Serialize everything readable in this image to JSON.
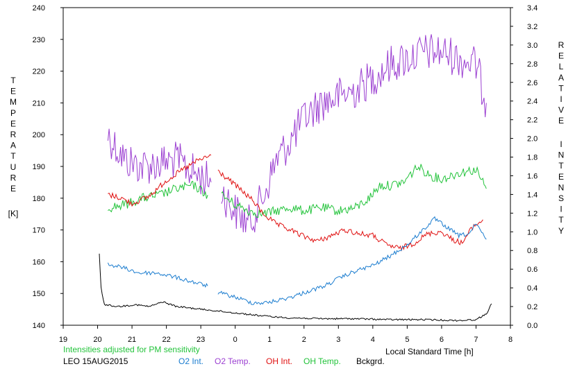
{
  "chart_data": {
    "type": "line",
    "left_axis": {
      "label_letters": [
        "T",
        "E",
        "M",
        "P",
        "E",
        "R",
        "A",
        "T",
        "U",
        "R",
        "E"
      ],
      "unit": "[K]",
      "ticks": [
        "240",
        "230",
        "220",
        "210",
        "200",
        "190",
        "180",
        "170",
        "160",
        "150",
        "140"
      ],
      "range": [
        140,
        240
      ]
    },
    "right_axis": {
      "label_word1": [
        "R",
        "E",
        "L",
        "A",
        "T",
        "I",
        "V",
        "E"
      ],
      "label_word2": [
        "I",
        "N",
        "T",
        "E",
        "N",
        "S",
        "I",
        "T",
        "Y"
      ],
      "ticks": [
        "3.4",
        "3.2",
        "3.0",
        "2.8",
        "2.6",
        "2.4",
        "2.2",
        "2.0",
        "1.8",
        "1.6",
        "1.4",
        "1.2",
        "1.0",
        "0.8",
        "0.6",
        "0.4",
        "0.2",
        "0.0"
      ],
      "range": [
        0.0,
        3.4
      ]
    },
    "x_axis": {
      "label": "Local Standard Time [h]",
      "ticks": [
        "19",
        "20",
        "21",
        "22",
        "23",
        "0",
        "1",
        "2",
        "3",
        "4",
        "5",
        "6",
        "7",
        "8"
      ],
      "range": [
        19,
        32
      ]
    },
    "note": "Intensities adjusted for PM sensitivity",
    "station": "LEO 15AUG2015",
    "legend": [
      "O2 Int.",
      "O2 Temp.",
      "OH Int.",
      "OH Temp.",
      "Bckgrd."
    ],
    "colors": {
      "o2_int": "#1a7ccf",
      "o2_temp": "#9b3fd1",
      "oh_int": "#e01010",
      "oh_temp": "#22c33a",
      "bckgrd": "#000000",
      "note": "#22c33a"
    },
    "series": [
      {
        "name": "O2 Temp.",
        "axis": "left",
        "key": "o2_temp",
        "segments": [
          [
            [
              20.3,
              200
            ],
            [
              20.8,
              192
            ],
            [
              21.3,
              190
            ],
            [
              21.8,
              191
            ],
            [
              22.3,
              192
            ],
            [
              22.8,
              188
            ],
            [
              23.3,
              185
            ]
          ],
          [
            [
              23.6,
              182
            ],
            [
              24.0,
              176
            ],
            [
              24.4,
              172
            ],
            [
              24.8,
              180
            ],
            [
              25.2,
              192
            ],
            [
              25.6,
              198
            ],
            [
              26.0,
              205
            ],
            [
              26.5,
              210
            ],
            [
              27.0,
              212
            ],
            [
              27.5,
              214
            ],
            [
              28.0,
              218
            ],
            [
              28.5,
              222
            ],
            [
              29.0,
              224
            ],
            [
              29.5,
              226
            ],
            [
              30.0,
              226
            ],
            [
              30.5,
              224
            ],
            [
              31.0,
              222
            ],
            [
              31.3,
              210
            ]
          ]
        ]
      },
      {
        "name": "OH Temp.",
        "axis": "left",
        "key": "oh_temp",
        "segments": [
          [
            [
              20.3,
              177
            ],
            [
              20.8,
              178
            ],
            [
              21.3,
              180
            ],
            [
              21.8,
              181
            ],
            [
              22.3,
              183
            ],
            [
              22.8,
              184
            ],
            [
              23.2,
              181
            ]
          ],
          [
            [
              23.6,
              181
            ],
            [
              24.0,
              178
            ],
            [
              24.4,
              176
            ],
            [
              24.8,
              175
            ],
            [
              25.2,
              176
            ],
            [
              25.6,
              177
            ],
            [
              26.0,
              176
            ],
            [
              26.5,
              177
            ],
            [
              27.0,
              176
            ],
            [
              27.5,
              177
            ],
            [
              27.9,
              180
            ],
            [
              28.2,
              184
            ],
            [
              28.5,
              184
            ],
            [
              28.9,
              185
            ],
            [
              29.3,
              190
            ],
            [
              29.7,
              187
            ],
            [
              30.0,
              186
            ],
            [
              30.5,
              188
            ],
            [
              31.0,
              189
            ],
            [
              31.3,
              183
            ]
          ]
        ]
      },
      {
        "name": "OH Int.",
        "axis": "right",
        "key": "oh_int",
        "segments": [
          [
            [
              20.3,
              1.4
            ],
            [
              20.7,
              1.36
            ],
            [
              21.0,
              1.3
            ],
            [
              21.5,
              1.38
            ],
            [
              22.0,
              1.55
            ],
            [
              22.5,
              1.67
            ],
            [
              22.9,
              1.76
            ],
            [
              23.3,
              1.82
            ]
          ],
          [
            [
              23.5,
              1.65
            ],
            [
              24.0,
              1.5
            ],
            [
              24.5,
              1.34
            ],
            [
              24.8,
              1.2
            ],
            [
              25.2,
              1.08
            ],
            [
              25.6,
              1.02
            ],
            [
              26.0,
              0.95
            ],
            [
              26.4,
              0.9
            ],
            [
              26.8,
              0.96
            ],
            [
              27.2,
              1.02
            ],
            [
              27.6,
              0.98
            ],
            [
              28.0,
              0.96
            ],
            [
              28.4,
              0.86
            ],
            [
              28.8,
              0.82
            ],
            [
              29.2,
              0.88
            ],
            [
              29.6,
              0.98
            ],
            [
              30.0,
              1.0
            ],
            [
              30.3,
              0.92
            ],
            [
              30.6,
              0.88
            ],
            [
              30.9,
              1.05
            ],
            [
              31.2,
              1.13
            ]
          ]
        ]
      },
      {
        "name": "O2 Int.",
        "axis": "right",
        "key": "o2_int",
        "segments": [
          [
            [
              20.3,
              0.65
            ],
            [
              20.7,
              0.62
            ],
            [
              21.2,
              0.56
            ],
            [
              21.7,
              0.56
            ],
            [
              22.2,
              0.52
            ],
            [
              22.7,
              0.47
            ],
            [
              23.2,
              0.42
            ]
          ],
          [
            [
              23.5,
              0.35
            ],
            [
              24.0,
              0.3
            ],
            [
              24.5,
              0.24
            ],
            [
              24.9,
              0.24
            ],
            [
              25.3,
              0.27
            ],
            [
              25.7,
              0.31
            ],
            [
              26.1,
              0.36
            ],
            [
              26.6,
              0.42
            ],
            [
              27.0,
              0.5
            ],
            [
              27.5,
              0.58
            ],
            [
              28.0,
              0.64
            ],
            [
              28.5,
              0.74
            ],
            [
              29.0,
              0.86
            ],
            [
              29.4,
              1.0
            ],
            [
              29.8,
              1.14
            ],
            [
              30.1,
              1.06
            ],
            [
              30.5,
              0.96
            ],
            [
              30.8,
              0.98
            ],
            [
              31.0,
              1.08
            ],
            [
              31.3,
              0.92
            ]
          ]
        ]
      },
      {
        "name": "Bckgrd.",
        "axis": "right",
        "key": "bckgrd",
        "segments": [
          [
            [
              20.05,
              0.76
            ],
            [
              20.1,
              0.4
            ],
            [
              20.2,
              0.22
            ],
            [
              20.6,
              0.2
            ],
            [
              21.1,
              0.22
            ],
            [
              21.5,
              0.2
            ],
            [
              21.9,
              0.25
            ],
            [
              22.3,
              0.2
            ],
            [
              22.8,
              0.18
            ],
            [
              23.3,
              0.16
            ],
            [
              23.8,
              0.14
            ],
            [
              24.3,
              0.12
            ],
            [
              24.8,
              0.1
            ],
            [
              25.5,
              0.08
            ],
            [
              26.5,
              0.07
            ],
            [
              27.5,
              0.07
            ],
            [
              28.5,
              0.06
            ],
            [
              29.5,
              0.06
            ],
            [
              30.5,
              0.05
            ],
            [
              31.0,
              0.06
            ],
            [
              31.3,
              0.12
            ],
            [
              31.45,
              0.23
            ]
          ]
        ]
      }
    ]
  }
}
